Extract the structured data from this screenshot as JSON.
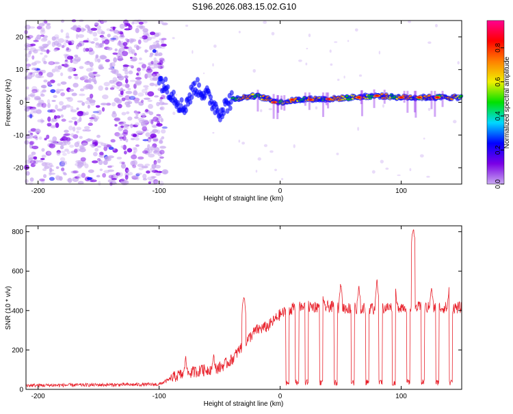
{
  "title": "S196.2026.083.15.02.G10",
  "chart_data": [
    {
      "type": "heatmap",
      "xlabel": "Height of straight line (km)",
      "ylabel": "Frequency (Hz)",
      "xlim": [
        -210,
        150
      ],
      "ylim": [
        -25,
        25
      ],
      "xticks": [
        -200,
        -100,
        0,
        100
      ],
      "yticks": [
        -20,
        -10,
        0,
        10,
        20
      ],
      "colorbar": {
        "label": "Normalized spectral amplitude",
        "range": [
          0.0,
          0.96
        ],
        "ticks": [
          0.0,
          0.2,
          0.4,
          0.6,
          0.8
        ],
        "colors": [
          "#ffffff",
          "#c8a8f0",
          "#7a00e6",
          "#0000ff",
          "#00d8ff",
          "#00e000",
          "#f0f000",
          "#ff8000",
          "#ff0000",
          "#ff0090"
        ]
      },
      "ridge": [
        {
          "x": -100,
          "y": 7
        },
        {
          "x": -90,
          "y": 3
        },
        {
          "x": -80,
          "y": -2
        },
        {
          "x": -70,
          "y": 5
        },
        {
          "x": -60,
          "y": 2
        },
        {
          "x": -50,
          "y": -3
        },
        {
          "x": -40,
          "y": 1
        },
        {
          "x": -20,
          "y": 2
        },
        {
          "x": 0,
          "y": 0
        },
        {
          "x": 20,
          "y": 1
        },
        {
          "x": 40,
          "y": 1
        },
        {
          "x": 60,
          "y": 1.5
        },
        {
          "x": 80,
          "y": 2
        },
        {
          "x": 100,
          "y": 1.5
        },
        {
          "x": 120,
          "y": 1.5
        },
        {
          "x": 140,
          "y": 1.5
        }
      ]
    },
    {
      "type": "line",
      "xlabel": "Height of straight line (km)",
      "ylabel": "SNR (10 * v/v)",
      "xlim": [
        -210,
        150
      ],
      "ylim": [
        0,
        830
      ],
      "xticks": [
        -200,
        -100,
        0,
        100
      ],
      "yticks": [
        0,
        200,
        400,
        600,
        800
      ],
      "series_color": "#e8202a",
      "envelope": [
        {
          "x": -210,
          "y": 20
        },
        {
          "x": -100,
          "y": 25
        },
        {
          "x": -85,
          "y": 70
        },
        {
          "x": -70,
          "y": 90
        },
        {
          "x": -50,
          "y": 110
        },
        {
          "x": -40,
          "y": 150
        },
        {
          "x": -30,
          "y": 230
        },
        {
          "x": -20,
          "y": 300
        },
        {
          "x": -10,
          "y": 320
        },
        {
          "x": 0,
          "y": 380
        },
        {
          "x": 10,
          "y": 410
        },
        {
          "x": 20,
          "y": 420
        },
        {
          "x": 40,
          "y": 420
        },
        {
          "x": 60,
          "y": 410
        },
        {
          "x": 80,
          "y": 410
        },
        {
          "x": 100,
          "y": 420
        },
        {
          "x": 120,
          "y": 415
        },
        {
          "x": 150,
          "y": 415
        }
      ],
      "peaks": [
        {
          "x": -78,
          "y": 170
        },
        {
          "x": -65,
          "y": 130
        },
        {
          "x": -55,
          "y": 180
        },
        {
          "x": -30,
          "y": 480
        },
        {
          "x": 20,
          "y": 430
        },
        {
          "x": 35,
          "y": 500
        },
        {
          "x": 50,
          "y": 540
        },
        {
          "x": 65,
          "y": 520
        },
        {
          "x": 80,
          "y": 550
        },
        {
          "x": 95,
          "y": 520
        },
        {
          "x": 110,
          "y": 830
        },
        {
          "x": 125,
          "y": 520
        },
        {
          "x": 140,
          "y": 540
        }
      ],
      "dropouts": [
        6,
        14,
        22,
        34,
        46,
        60,
        72,
        83,
        94,
        106,
        118,
        130,
        141
      ]
    }
  ]
}
